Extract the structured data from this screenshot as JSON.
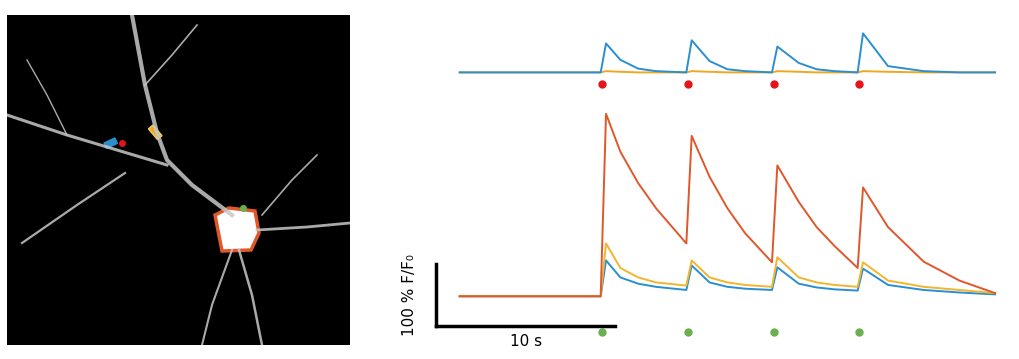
{
  "chart_data": [
    {
      "type": "line",
      "tick_labels": false,
      "x": [
        0,
        2,
        4,
        6,
        7.9,
        8.2,
        9,
        10,
        11,
        12.7,
        13.0,
        14,
        15,
        16,
        17.5,
        17.8,
        19,
        20,
        21,
        22.3,
        22.6,
        24,
        26,
        28,
        30
      ],
      "xlim": [
        -2,
        30.5
      ],
      "ylim": [
        -20,
        80
      ],
      "series": [
        {
          "color": "#f0a81e",
          "values": [
            0,
            0,
            0,
            0,
            0,
            2,
            1,
            0,
            0,
            0,
            2,
            1,
            0,
            0,
            0,
            2,
            1,
            0,
            0,
            0,
            2,
            1,
            0,
            0,
            0
          ]
        },
        {
          "color": "#2a8fd0",
          "values": [
            0,
            0,
            0,
            0,
            0,
            46,
            20,
            6,
            2,
            0,
            51,
            18,
            5,
            2,
            0,
            41,
            15,
            5,
            2,
            0,
            62,
            10,
            2,
            0,
            0
          ]
        }
      ],
      "stimuli": {
        "x": [
          8.0,
          12.8,
          17.6,
          22.4
        ],
        "color": "#e3151b"
      }
    },
    {
      "type": "line",
      "tick_labels": false,
      "x": [
        0,
        2,
        4,
        6,
        7.9,
        8.2,
        9,
        10,
        11,
        12.7,
        13.0,
        14,
        15,
        16,
        17.5,
        17.8,
        19,
        20,
        21,
        22.3,
        22.6,
        24,
        26,
        28,
        30
      ],
      "xlim": [
        -2,
        30.5
      ],
      "ylim": [
        -60,
        320
      ],
      "series": [
        {
          "color": "#2a8fd0",
          "values": [
            0,
            0,
            0,
            0,
            0,
            57,
            30,
            20,
            15,
            10,
            49,
            22,
            15,
            12,
            10,
            46,
            20,
            14,
            11,
            9,
            44,
            18,
            10,
            6,
            3
          ]
        },
        {
          "color": "#f2b52e",
          "values": [
            0,
            0,
            0,
            0,
            0,
            84,
            45,
            30,
            22,
            17,
            57,
            30,
            22,
            18,
            15,
            62,
            30,
            22,
            18,
            15,
            54,
            25,
            15,
            10,
            5
          ]
        },
        {
          "color": "#e0572a",
          "values": [
            0,
            0,
            0,
            0,
            0,
            290,
            230,
            180,
            140,
            84,
            255,
            190,
            140,
            100,
            54,
            208,
            150,
            110,
            80,
            45,
            173,
            110,
            55,
            25,
            5
          ]
        }
      ],
      "stimuli": {
        "x": [
          8.0,
          12.8,
          17.6,
          22.4
        ],
        "color": "#6ab04c"
      },
      "scale_bar": {
        "y": 100,
        "y_label": "100 % F/F₀",
        "x": 10,
        "x_label": "10 s"
      }
    }
  ]
}
